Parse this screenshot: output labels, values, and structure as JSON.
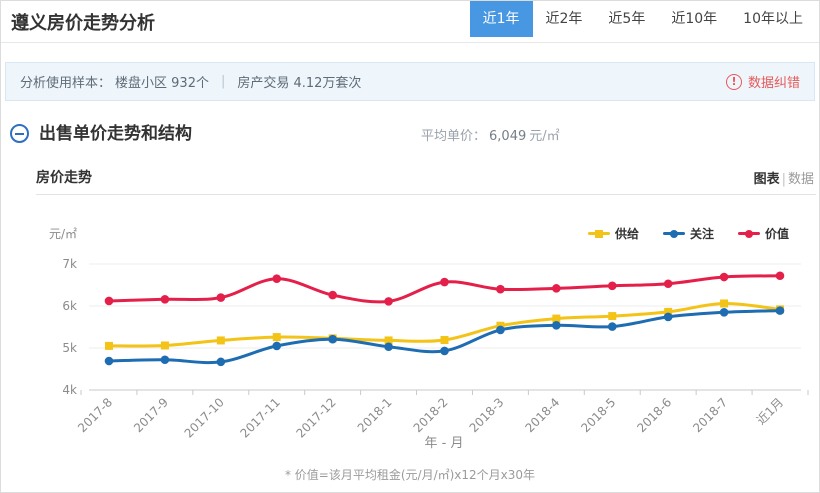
{
  "header": {
    "title": "遵义房价走势分析",
    "tabs": [
      {
        "label": "近1年",
        "active": true
      },
      {
        "label": "近2年",
        "active": false
      },
      {
        "label": "近5年",
        "active": false
      },
      {
        "label": "近10年",
        "active": false
      },
      {
        "label": "10年以上",
        "active": false
      }
    ]
  },
  "info_bar": {
    "sample_label": "分析使用样本：",
    "sample_1": "楼盘小区 932个",
    "divider": "|",
    "sample_2": "房产交易 4.12万套次",
    "correction_label": "数据纠错",
    "correction_icon": "exclamation-circle",
    "correction_color": "#e65a5a"
  },
  "section": {
    "collapse_icon": "minus-circle",
    "title": "出售单价走势和结构",
    "avg_price_label": "平均单价：",
    "avg_price_value": "6,049",
    "avg_price_unit": "元/㎡"
  },
  "chart_panel": {
    "title": "房价走势",
    "view_chart_label": "图表",
    "view_divider": "|",
    "view_data_label": "数据",
    "active_view": "图表"
  },
  "chart_data": {
    "type": "line",
    "title": "房价走势",
    "unit_label": "元/㎡",
    "xlabel": "年 - 月",
    "categories": [
      "2017-8",
      "2017-9",
      "2017-10",
      "2017-11",
      "2017-12",
      "2018-1",
      "2018-2",
      "2018-3",
      "2018-4",
      "2018-5",
      "2018-6",
      "2018-7",
      "近1月"
    ],
    "series": [
      {
        "name": "供给",
        "color": "#f3c317",
        "marker": "square",
        "values": [
          5050,
          5060,
          5180,
          5260,
          5230,
          5180,
          5190,
          5530,
          5700,
          5760,
          5860,
          6060,
          5920
        ]
      },
      {
        "name": "关注",
        "color": "#1e6cb2",
        "marker": "circle",
        "values": [
          4690,
          4720,
          4670,
          5050,
          5210,
          5030,
          4930,
          5430,
          5540,
          5510,
          5740,
          5850,
          5890
        ]
      },
      {
        "name": "价值",
        "color": "#e4204a",
        "marker": "circle",
        "values": [
          6120,
          6160,
          6200,
          6650,
          6260,
          6110,
          6570,
          6400,
          6420,
          6480,
          6530,
          6690,
          6720
        ]
      }
    ],
    "ylim": [
      4000,
      7000
    ],
    "yticks": [
      {
        "label": "4k",
        "value": 4000
      },
      {
        "label": "5k",
        "value": 5000
      },
      {
        "label": "6k",
        "value": 6000
      },
      {
        "label": "7k",
        "value": 7000
      }
    ],
    "grid": true,
    "legend_position": "top-right"
  },
  "footnote": "* 价值=该月平均租金(元/月/㎡)x12个月x30年",
  "colors": {
    "accent_blue": "#4797e2",
    "line_yellow": "#f3c317",
    "line_blue": "#1e6cb2",
    "line_red": "#e4204a"
  }
}
